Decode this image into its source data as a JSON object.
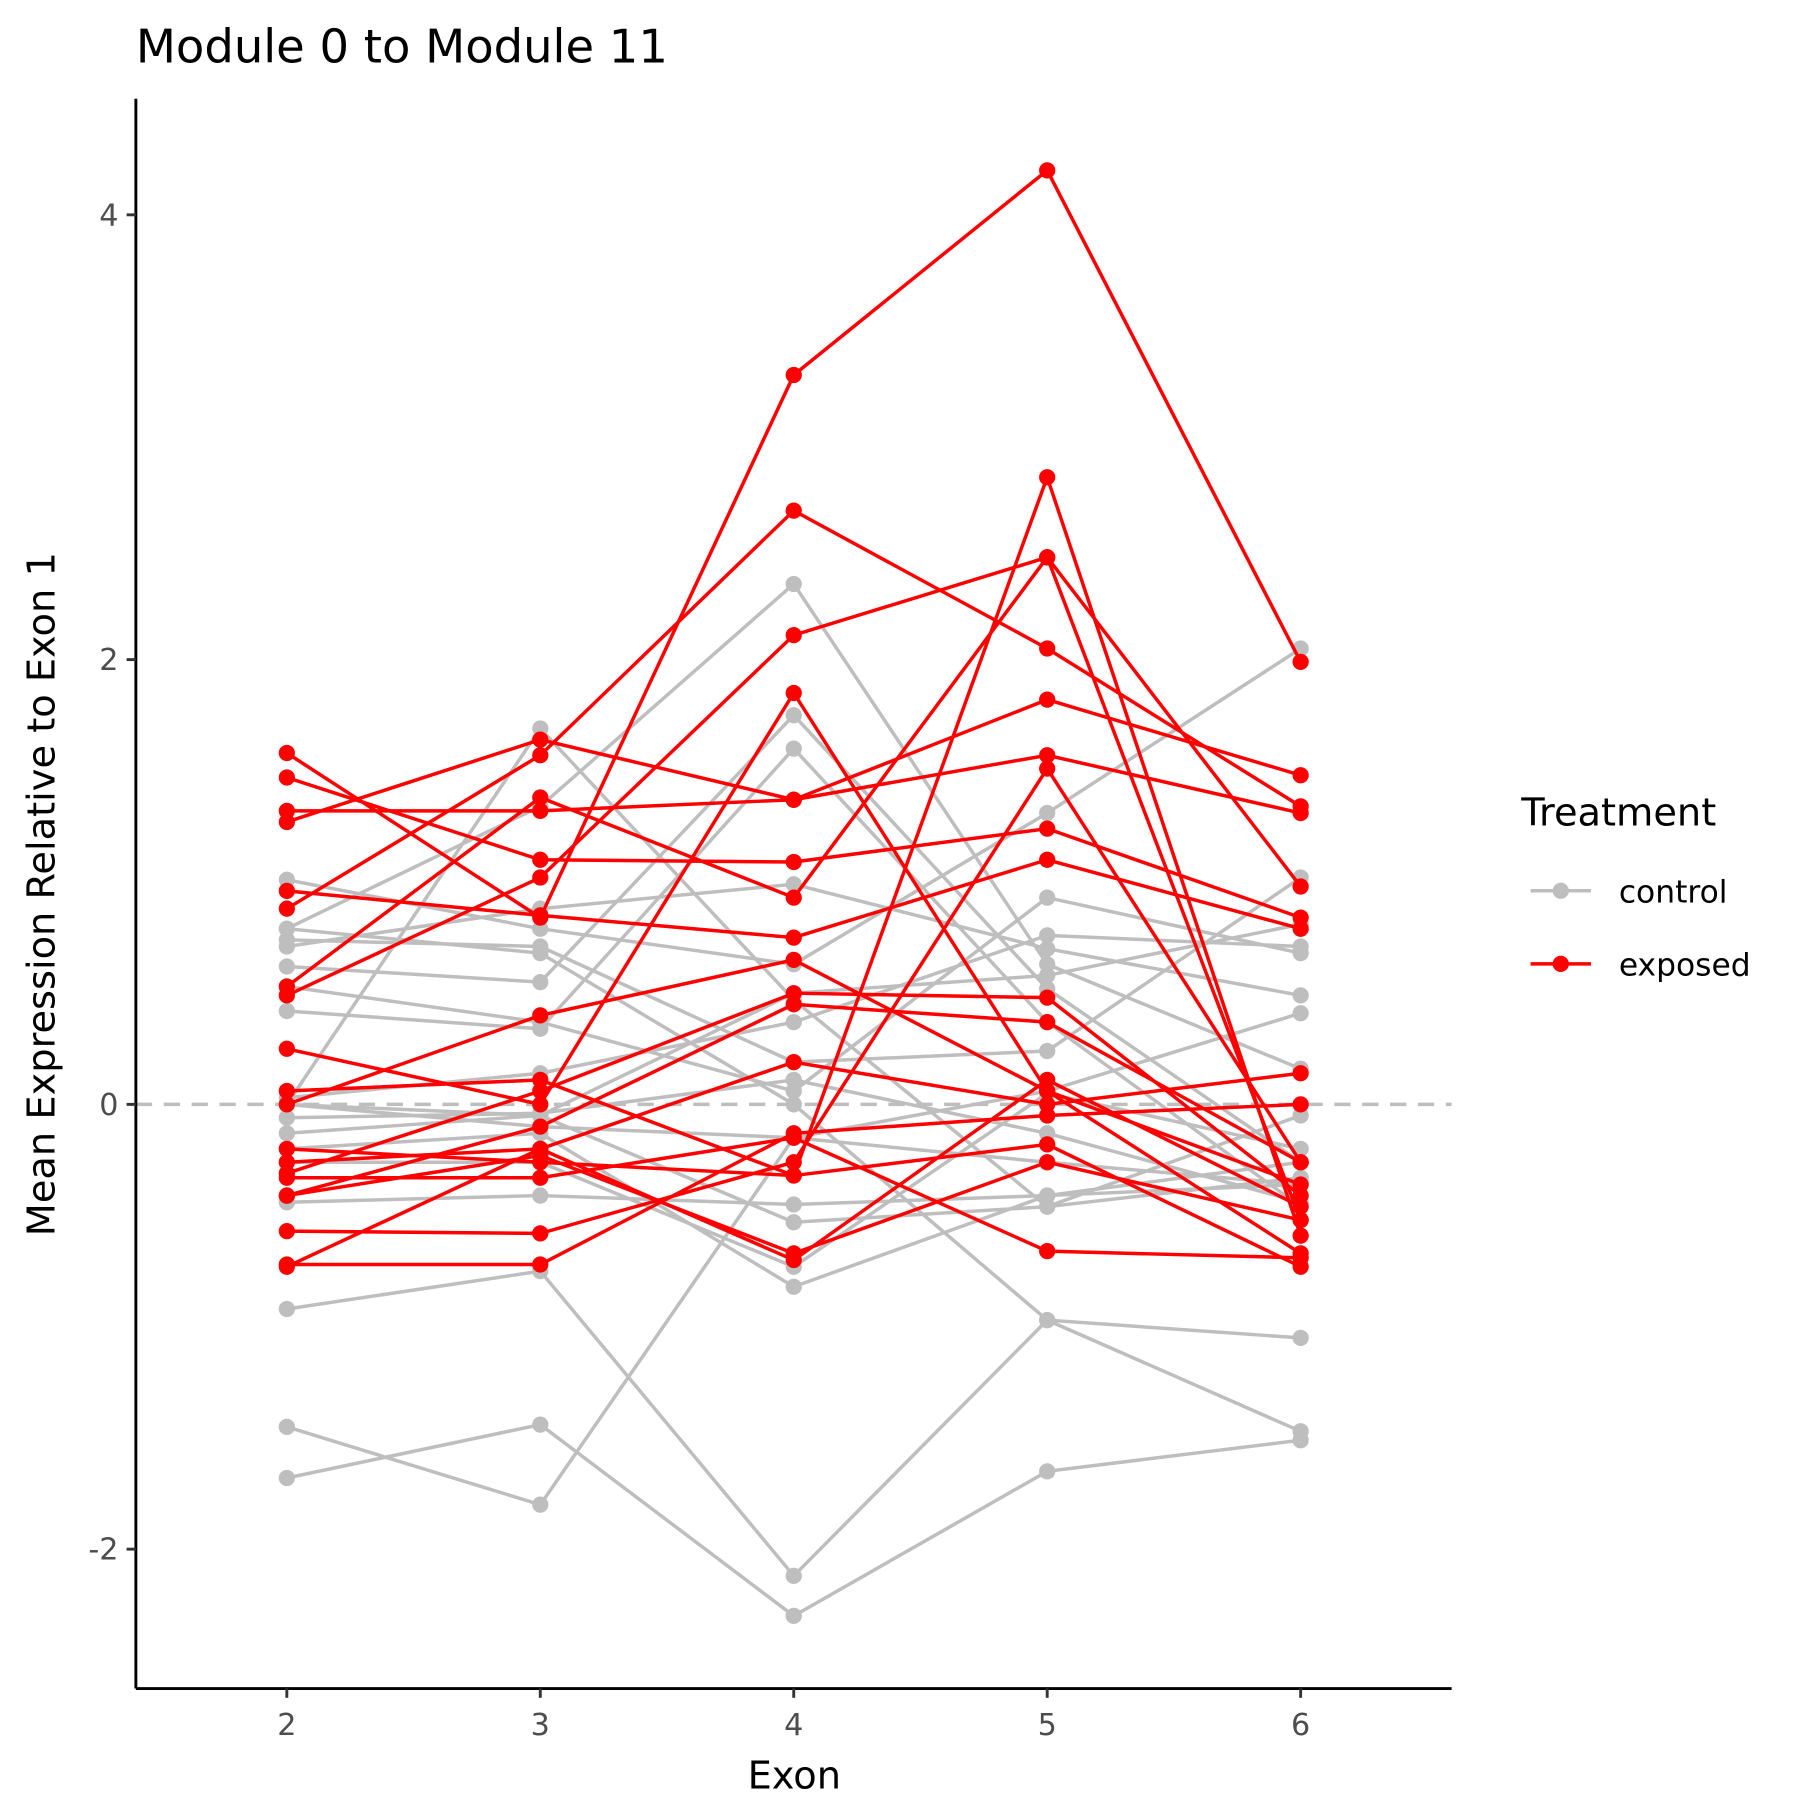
{
  "chart_data": {
    "type": "line",
    "title": "Module 0 to Module  11",
    "xlabel": "Exon",
    "ylabel": "Mean Expression Relative to Exon 1",
    "x": [
      2,
      3,
      4,
      5,
      6
    ],
    "x_ticks": [
      "2",
      "3",
      "4",
      "5",
      "6"
    ],
    "y_ticks": [
      "-2",
      "0",
      "2",
      "4"
    ],
    "y_tick_values": [
      -2,
      0,
      2,
      4
    ],
    "xlim": [
      1.4,
      6.6
    ],
    "ylim": [
      -2.6,
      4.5
    ],
    "grid": false,
    "reference_line": {
      "y": 0,
      "style": "dashed",
      "color": "#bebebe"
    },
    "legend": {
      "title": "Treatment",
      "placement": "right",
      "entries": [
        {
          "label": "control",
          "color": "#bebebe"
        },
        {
          "label": "exposed",
          "color": "#ff0000"
        }
      ]
    },
    "series": [
      {
        "group": "control",
        "values": [
          -1.68,
          -1.44,
          -2.3,
          -1.65,
          -1.51
        ]
      },
      {
        "group": "control",
        "values": [
          -1.45,
          -1.8,
          -0.15,
          -0.26,
          -0.36
        ]
      },
      {
        "group": "control",
        "values": [
          -0.92,
          -0.75,
          -2.12,
          -0.97,
          -1.47
        ]
      },
      {
        "group": "control",
        "values": [
          0.79,
          0.68,
          0.0,
          -0.97,
          -1.05
        ]
      },
      {
        "group": "control",
        "values": [
          1.01,
          0.79,
          0.63,
          1.31,
          2.05
        ]
      },
      {
        "group": "control",
        "values": [
          0.0,
          1.69,
          0.47,
          -0.46,
          -0.05
        ]
      },
      {
        "group": "control",
        "values": [
          0.79,
          1.34,
          2.34,
          0.63,
          0.16
        ]
      },
      {
        "group": "control",
        "values": [
          0.62,
          0.55,
          1.75,
          0.52,
          -0.26
        ]
      },
      {
        "group": "control",
        "values": [
          0.42,
          0.34,
          1.6,
          0.37,
          -0.46
        ]
      },
      {
        "group": "control",
        "values": [
          0.71,
          0.88,
          0.99,
          0.7,
          0.49
        ]
      },
      {
        "group": "control",
        "values": [
          0.53,
          0.37,
          0.06,
          0.93,
          0.68
        ]
      },
      {
        "group": "control",
        "values": [
          0.03,
          0.14,
          0.37,
          0.76,
          0.71
        ]
      },
      {
        "group": "control",
        "values": [
          -0.13,
          -0.05,
          -0.53,
          -0.46,
          -0.33
        ]
      },
      {
        "group": "control",
        "values": [
          -0.44,
          -0.41,
          -0.45,
          -0.41,
          -0.36
        ]
      },
      {
        "group": "control",
        "values": [
          -0.2,
          -0.13,
          -0.82,
          -0.41,
          -0.26
        ]
      },
      {
        "group": "control",
        "values": [
          -0.26,
          -0.26,
          -0.73,
          0.05,
          -0.2
        ]
      },
      {
        "group": "control",
        "values": [
          -0.06,
          -0.04,
          0.11,
          -0.13,
          -0.44
        ]
      },
      {
        "group": "control",
        "values": [
          0.0,
          -0.1,
          -0.15,
          0.06,
          0.41
        ]
      },
      {
        "group": "control",
        "values": [
          0.74,
          0.71,
          0.19,
          0.24,
          1.02
        ]
      },
      {
        "group": "control",
        "values": [
          0.0,
          -0.05,
          0.5,
          0.58,
          0.81
        ]
      },
      {
        "group": "exposed",
        "values": [
          1.58,
          0.84,
          3.28,
          4.2,
          1.99
        ]
      },
      {
        "group": "exposed",
        "values": [
          1.27,
          1.64,
          1.37,
          1.82,
          1.48
        ]
      },
      {
        "group": "exposed",
        "values": [
          1.32,
          1.32,
          1.37,
          1.57,
          1.31
        ]
      },
      {
        "group": "exposed",
        "values": [
          1.47,
          1.1,
          1.09,
          1.24,
          0.84
        ]
      },
      {
        "group": "exposed",
        "values": [
          0.96,
          0.85,
          0.75,
          1.1,
          0.79
        ]
      },
      {
        "group": "exposed",
        "values": [
          0.88,
          1.57,
          2.67,
          2.05,
          1.34
        ]
      },
      {
        "group": "exposed",
        "values": [
          0.53,
          1.38,
          0.93,
          2.46,
          0.98
        ]
      },
      {
        "group": "exposed",
        "values": [
          0.49,
          1.02,
          2.11,
          2.46,
          -0.52
        ]
      },
      {
        "group": "exposed",
        "values": [
          0.25,
          0.0,
          1.85,
          0.06,
          -0.36
        ]
      },
      {
        "group": "exposed",
        "values": [
          0.06,
          0.11,
          -0.32,
          2.82,
          -0.59
        ]
      },
      {
        "group": "exposed",
        "values": [
          0.0,
          0.4,
          0.65,
          0.06,
          -0.67
        ]
      },
      {
        "group": "exposed",
        "values": [
          -0.31,
          0.06,
          0.5,
          0.48,
          -0.41
        ]
      },
      {
        "group": "exposed",
        "values": [
          -0.41,
          -0.1,
          0.45,
          0.37,
          -0.26
        ]
      },
      {
        "group": "exposed",
        "values": [
          -0.73,
          -0.2,
          0.19,
          0.0,
          0.14
        ]
      },
      {
        "group": "exposed",
        "values": [
          -0.26,
          -0.2,
          -0.7,
          0.11,
          -0.46
        ]
      },
      {
        "group": "exposed",
        "values": [
          -0.57,
          -0.58,
          -0.26,
          1.51,
          -0.26
        ]
      },
      {
        "group": "exposed",
        "values": [
          -0.72,
          -0.72,
          -0.13,
          -0.05,
          0.0
        ]
      },
      {
        "group": "exposed",
        "values": [
          -0.2,
          -0.26,
          -0.32,
          -0.18,
          -0.73
        ]
      },
      {
        "group": "exposed",
        "values": [
          -0.33,
          -0.33,
          -0.15,
          -0.66,
          -0.69
        ]
      },
      {
        "group": "exposed",
        "values": [
          -0.41,
          -0.23,
          -0.67,
          -0.26,
          -0.52
        ]
      }
    ]
  }
}
